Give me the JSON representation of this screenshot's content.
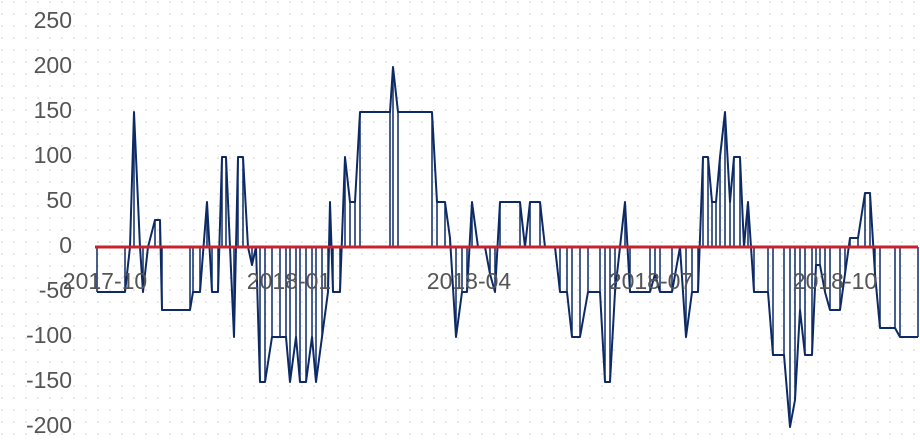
{
  "chart_data": {
    "type": "line",
    "x": [
      -4,
      10,
      12.5,
      14.5,
      17.5,
      19,
      21.5,
      25,
      27.5,
      28.5,
      42.5,
      44,
      47.5,
      51,
      53.5,
      56.5,
      58.5,
      60.5,
      62.5,
      64.5,
      66.5,
      69,
      71.5,
      73.5,
      75.5,
      77.5,
      80,
      83.5,
      87.5,
      90.5,
      92.5,
      95.5,
      97.5,
      100.5,
      103.5,
      105.5,
      108.5,
      111.5,
      112.5,
      114,
      117.5,
      120,
      122.5,
      125,
      127.5,
      142.5,
      144,
      146.5,
      163.5,
      166,
      170,
      172.5,
      175.5,
      178.5,
      181,
      183.5,
      186.5,
      190,
      192.5,
      195,
      197.5,
      207.5,
      210,
      212.5,
      217.5,
      220,
      225,
      227.5,
      231,
      233.5,
      237.5,
      241.5,
      247.5,
      250,
      252.5,
      255,
      260,
      262.5,
      272.5,
      275,
      277.5,
      283.5,
      287.5,
      290.5,
      293.5,
      296.5,
      299,
      301.5,
      303.5,
      305.5,
      307.5,
      310,
      312.5,
      314.5,
      317.5,
      319.5,
      321.5,
      324.5,
      331.5,
      334,
      339.5,
      342.5,
      345,
      347.5,
      350,
      353.5,
      355.5,
      357.5,
      360,
      362.5,
      367.5,
      370,
      372.5,
      376.5,
      380,
      382.5,
      385,
      387.5,
      395,
      397.5,
      406.5
    ],
    "series": [
      {
        "color": "#0d2a66",
        "values": [
          -50,
          -50,
          0,
          150,
          0,
          -50,
          0,
          30,
          30,
          -70,
          -70,
          -50,
          -50,
          50,
          -50,
          -50,
          100,
          100,
          0,
          -100,
          100,
          100,
          0,
          -20,
          0,
          -150,
          -150,
          -100,
          -100,
          -100,
          -150,
          -100,
          -150,
          -150,
          -100,
          -150,
          -100,
          -50,
          50,
          -50,
          -50,
          100,
          50,
          50,
          150,
          150,
          200,
          150,
          150,
          50,
          50,
          10,
          -100,
          -50,
          -50,
          50,
          0,
          0,
          -30,
          -50,
          50,
          50,
          0,
          50,
          50,
          0,
          0,
          -50,
          -50,
          -100,
          -100,
          -50,
          -50,
          -150,
          -150,
          -50,
          50,
          -50,
          -50,
          -30,
          -50,
          -50,
          0,
          -100,
          -50,
          -50,
          100,
          100,
          50,
          50,
          100,
          150,
          50,
          100,
          100,
          0,
          50,
          -50,
          -50,
          -120,
          -120,
          -200,
          -170,
          -70,
          -120,
          -120,
          -20,
          -20,
          -50,
          -70,
          -70,
          -30,
          10,
          10,
          60,
          60,
          -30,
          -90,
          -90,
          -100,
          -100
        ]
      }
    ],
    "drop_lines": true,
    "zero_line_color": "#c8232c",
    "xlim": [
      -5,
      406.5
    ],
    "xticks": [
      {
        "value": 0,
        "label": "2017-10"
      },
      {
        "value": 92,
        "label": "2018-01"
      },
      {
        "value": 182,
        "label": "2018-04"
      },
      {
        "value": 273,
        "label": "2018-07"
      },
      {
        "value": 365,
        "label": "2018-10"
      }
    ],
    "ylim": [
      -200,
      250
    ],
    "yticks": [
      -200,
      -150,
      -100,
      -50,
      0,
      50,
      100,
      150,
      200,
      250
    ]
  }
}
